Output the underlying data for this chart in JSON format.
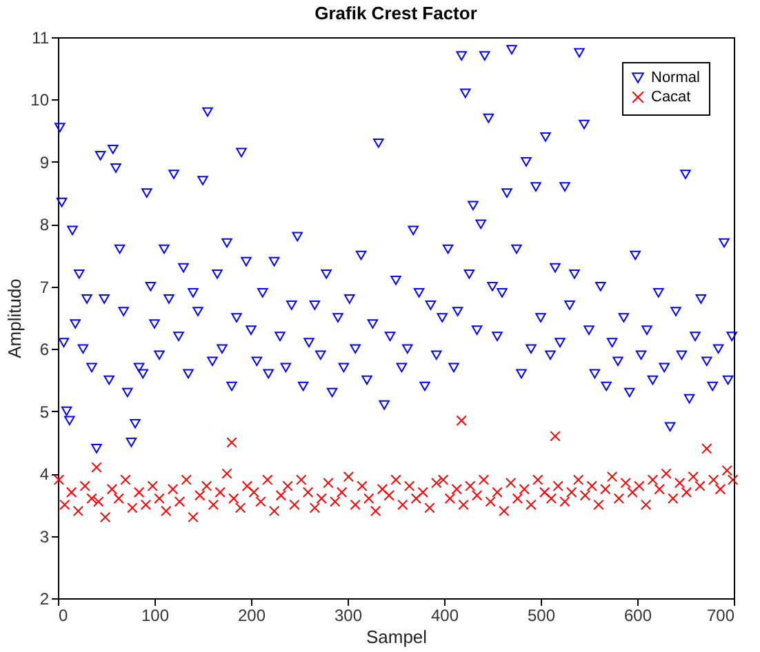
{
  "chart_data": {
    "type": "scatter",
    "title": "Grafik Crest Factor",
    "xlabel": "Sampel",
    "ylabel": "Amplitudo",
    "xlim": [
      0,
      700
    ],
    "ylim": [
      2,
      11
    ],
    "xticks": [
      0,
      100,
      200,
      300,
      400,
      500,
      600,
      700
    ],
    "yticks": [
      2,
      3,
      4,
      5,
      6,
      7,
      8,
      9,
      10,
      11
    ],
    "grid": false,
    "legend": "top right",
    "series": [
      {
        "name": "Normal",
        "color": "#0000ff",
        "marker": "triangle",
        "x": [
          2,
          4,
          6,
          9,
          12,
          15,
          18,
          22,
          26,
          30,
          35,
          40,
          44,
          48,
          53,
          57,
          60,
          64,
          68,
          72,
          76,
          80,
          84,
          88,
          92,
          96,
          100,
          105,
          110,
          115,
          120,
          125,
          130,
          135,
          140,
          145,
          150,
          155,
          160,
          165,
          170,
          175,
          180,
          185,
          190,
          195,
          200,
          206,
          212,
          218,
          224,
          230,
          236,
          242,
          248,
          254,
          260,
          266,
          272,
          278,
          284,
          290,
          296,
          302,
          308,
          314,
          320,
          326,
          332,
          338,
          344,
          350,
          356,
          362,
          368,
          374,
          380,
          386,
          392,
          398,
          404,
          410,
          414,
          418,
          422,
          426,
          430,
          434,
          438,
          442,
          446,
          450,
          455,
          460,
          465,
          470,
          475,
          480,
          485,
          490,
          495,
          500,
          505,
          510,
          515,
          520,
          525,
          530,
          535,
          540,
          545,
          550,
          556,
          562,
          568,
          574,
          580,
          586,
          592,
          598,
          604,
          610,
          616,
          622,
          628,
          634,
          640,
          646,
          650,
          654,
          660,
          666,
          672,
          678,
          684,
          690,
          694,
          698
        ],
        "values": [
          9.55,
          8.35,
          6.1,
          5.0,
          4.85,
          7.9,
          6.4,
          7.2,
          6.0,
          6.8,
          5.7,
          4.4,
          9.1,
          6.8,
          5.5,
          9.2,
          8.9,
          7.6,
          6.6,
          5.3,
          4.5,
          4.8,
          5.7,
          5.6,
          8.5,
          7.0,
          6.4,
          5.9,
          7.6,
          6.8,
          8.8,
          6.2,
          7.3,
          5.6,
          6.9,
          6.6,
          8.7,
          9.8,
          5.8,
          7.2,
          6.0,
          7.7,
          5.4,
          6.5,
          9.15,
          7.4,
          6.3,
          5.8,
          6.9,
          5.6,
          7.4,
          6.2,
          5.7,
          6.7,
          7.8,
          5.4,
          6.1,
          6.7,
          5.9,
          7.2,
          5.3,
          6.5,
          5.7,
          6.8,
          6.0,
          7.5,
          5.5,
          6.4,
          9.3,
          5.1,
          6.2,
          7.1,
          5.7,
          6.0,
          7.9,
          6.9,
          5.4,
          6.7,
          5.9,
          6.5,
          7.6,
          5.7,
          6.6,
          10.7,
          10.1,
          7.2,
          8.3,
          6.3,
          8.0,
          10.7,
          9.7,
          7.0,
          6.2,
          6.9,
          8.5,
          10.8,
          7.6,
          5.6,
          9.0,
          6.0,
          8.6,
          6.5,
          9.4,
          5.9,
          7.3,
          6.1,
          8.6,
          6.7,
          7.2,
          10.75,
          9.6,
          6.3,
          5.6,
          7.0,
          5.4,
          6.1,
          5.8,
          6.5,
          5.3,
          7.5,
          5.9,
          6.3,
          5.5,
          6.9,
          5.7,
          4.75,
          6.6,
          5.9,
          8.8,
          5.2,
          6.2,
          6.8,
          5.8,
          5.4,
          6.0,
          7.7,
          5.5,
          6.2
        ]
      },
      {
        "name": "Cacat",
        "color": "#ff0000",
        "marker": "cross",
        "x": [
          1,
          7,
          14,
          21,
          28,
          35,
          40,
          42,
          49,
          56,
          63,
          70,
          77,
          84,
          91,
          98,
          105,
          112,
          119,
          126,
          133,
          140,
          147,
          154,
          161,
          168,
          175,
          180,
          182,
          189,
          196,
          203,
          210,
          217,
          224,
          231,
          238,
          245,
          252,
          259,
          266,
          273,
          280,
          287,
          294,
          301,
          308,
          315,
          322,
          329,
          336,
          343,
          350,
          357,
          364,
          371,
          378,
          385,
          392,
          399,
          406,
          413,
          418,
          420,
          427,
          434,
          441,
          448,
          455,
          462,
          469,
          476,
          483,
          490,
          497,
          504,
          511,
          515,
          518,
          525,
          532,
          539,
          546,
          553,
          560,
          567,
          574,
          581,
          588,
          595,
          602,
          609,
          616,
          623,
          630,
          637,
          644,
          651,
          658,
          665,
          672,
          679,
          686,
          693,
          699
        ],
        "values": [
          3.9,
          3.5,
          3.7,
          3.4,
          3.8,
          3.6,
          4.1,
          3.55,
          3.3,
          3.75,
          3.6,
          3.9,
          3.45,
          3.7,
          3.5,
          3.8,
          3.6,
          3.4,
          3.75,
          3.55,
          3.9,
          3.3,
          3.65,
          3.8,
          3.5,
          3.7,
          4.0,
          4.5,
          3.6,
          3.45,
          3.8,
          3.7,
          3.55,
          3.9,
          3.4,
          3.65,
          3.8,
          3.5,
          3.9,
          3.7,
          3.45,
          3.6,
          3.85,
          3.55,
          3.7,
          3.95,
          3.5,
          3.8,
          3.6,
          3.4,
          3.75,
          3.65,
          3.9,
          3.5,
          3.8,
          3.6,
          3.7,
          3.45,
          3.85,
          3.9,
          3.6,
          3.75,
          4.85,
          3.5,
          3.8,
          3.65,
          3.9,
          3.55,
          3.7,
          3.4,
          3.85,
          3.6,
          3.75,
          3.5,
          3.9,
          3.7,
          3.6,
          4.6,
          3.8,
          3.55,
          3.7,
          3.9,
          3.65,
          3.8,
          3.5,
          3.75,
          3.95,
          3.6,
          3.85,
          3.7,
          3.8,
          3.5,
          3.9,
          3.75,
          4.0,
          3.6,
          3.85,
          3.7,
          3.95,
          3.8,
          4.4,
          3.9,
          3.75,
          4.05,
          3.9
        ]
      }
    ]
  }
}
